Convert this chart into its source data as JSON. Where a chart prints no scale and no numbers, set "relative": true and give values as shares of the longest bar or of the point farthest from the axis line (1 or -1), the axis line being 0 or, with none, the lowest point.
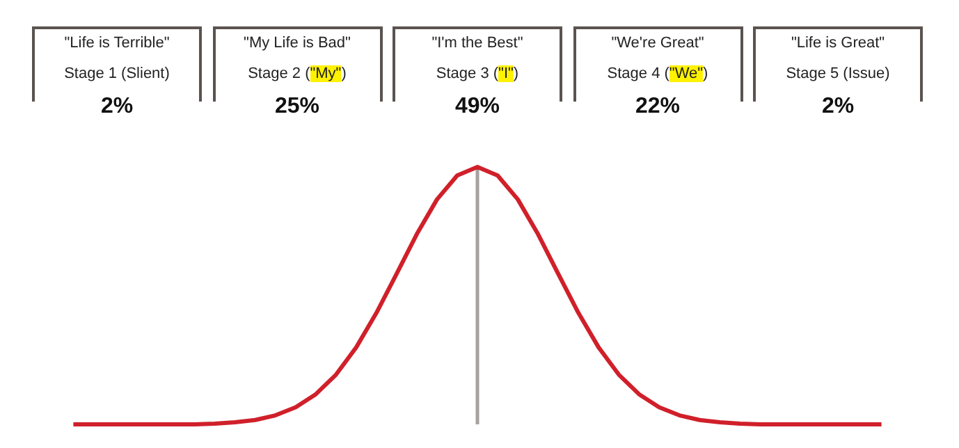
{
  "chart_data": [
    {
      "type": "other",
      "categories": [
        "\"Life is Terrible\"\nStage 1 (Slient)",
        "\"My Life is Bad\"\nStage 2 (\"My\")",
        "\"I'm the Best\"\nStage 3 (\"I\")",
        "\"We're Great\"\nStage 4 (\"We\")",
        "\"Life is Great\"\nStage 5 (Issue)"
      ],
      "values": [
        2,
        25,
        49,
        22,
        2
      ],
      "value_labels": [
        "2%",
        "25%",
        "49%",
        "22%",
        "2%"
      ]
    },
    {
      "type": "line",
      "relative": true,
      "tick_labels": false,
      "categories": [
        null,
        null,
        null,
        null,
        null,
        null,
        null,
        null,
        null,
        null,
        null,
        null,
        null,
        null,
        null,
        null,
        null,
        null,
        null,
        null,
        null,
        null,
        null,
        null,
        null,
        null,
        null,
        null,
        null,
        null,
        null,
        null,
        null,
        null,
        null,
        null,
        null,
        null,
        null,
        null,
        null
      ],
      "series": [
        {
          "color": "#d0202a",
          "values": [
            0,
            0,
            0,
            0,
            0,
            0,
            0,
            0.003,
            0.008,
            0.017,
            0.035,
            0.066,
            0.117,
            0.193,
            0.299,
            0.433,
            0.585,
            0.739,
            0.874,
            0.967,
            1,
            0.967,
            0.874,
            0.739,
            0.585,
            0.433,
            0.299,
            0.193,
            0.117,
            0.066,
            0.035,
            0.017,
            0.008,
            0.003,
            0,
            0,
            0,
            0,
            0,
            0,
            0
          ]
        }
      ]
    }
  ]
}
